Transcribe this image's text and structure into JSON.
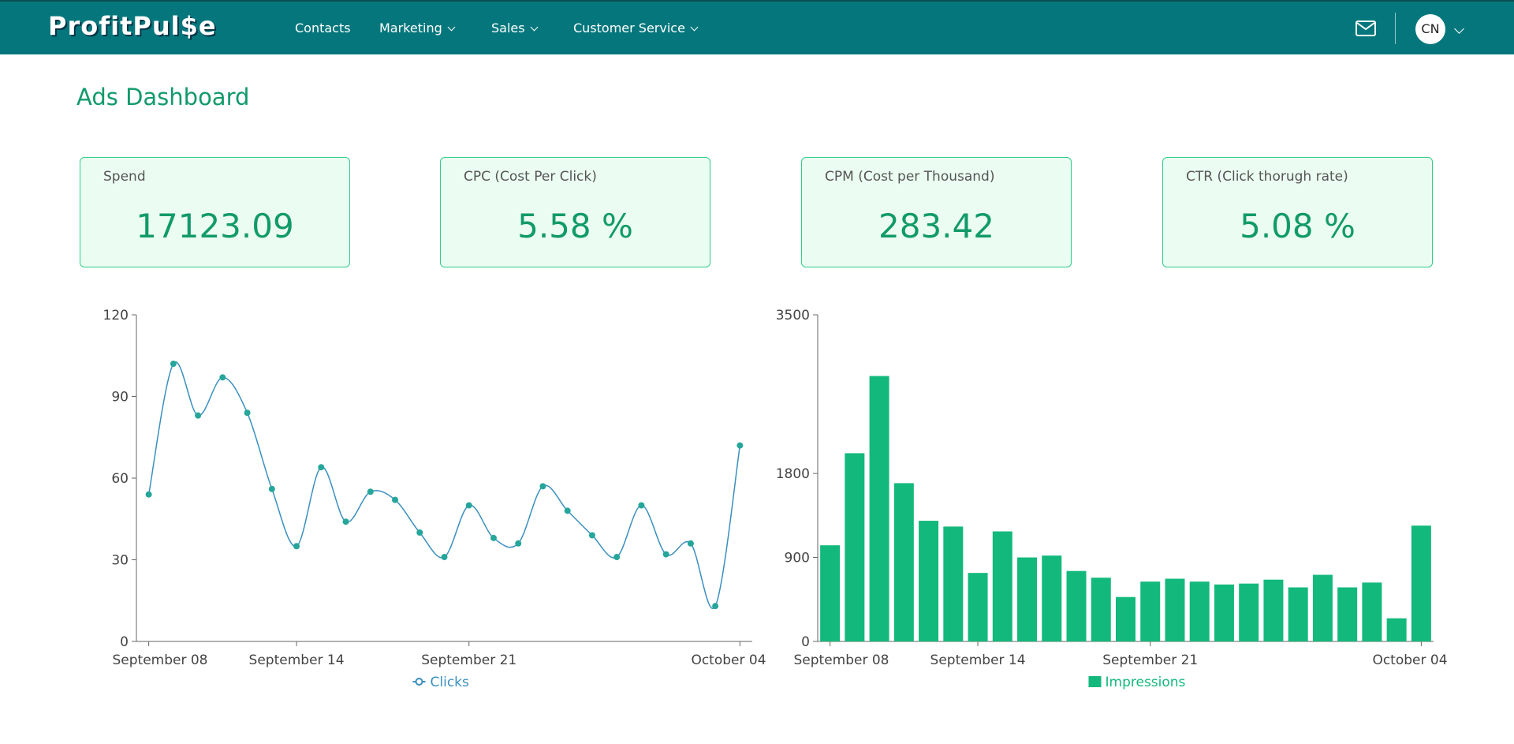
{
  "nav": {
    "logo": "ProfitPul$e",
    "items": [
      "Contacts",
      "Marketing",
      "Sales",
      "Customer Service"
    ],
    "avatar": "CN"
  },
  "title": "Ads Dashboard",
  "cards": [
    {
      "label": "Spend",
      "value": "17123.09"
    },
    {
      "label": "CPC (Cost Per Click)",
      "value": "5.58 %"
    },
    {
      "label": "CPM (Cost per Thousand)",
      "value": "283.42"
    },
    {
      "label": "CTR (Click thorugh rate)",
      "value": "5.08 %"
    }
  ],
  "chart_data": [
    {
      "type": "line",
      "categories": [
        "September 08",
        null,
        null,
        null,
        null,
        null,
        "September 14",
        null,
        null,
        null,
        null,
        null,
        null,
        "September 21",
        null,
        null,
        null,
        null,
        null,
        null,
        null,
        null,
        null,
        null,
        "October 04"
      ],
      "series": [
        {
          "name": "Clicks",
          "color": "#3a8fbf",
          "marker_color": "#26a69a",
          "values": [
            54,
            102,
            83,
            97,
            84,
            56,
            35,
            64,
            44,
            55,
            52,
            40,
            31,
            50,
            38,
            36,
            57,
            48,
            39,
            31,
            50,
            32,
            36,
            13,
            72
          ]
        }
      ],
      "ylim": [
        0,
        120
      ],
      "yticks": [
        0,
        30,
        60,
        90,
        120
      ],
      "legend": "bottom"
    },
    {
      "type": "bar",
      "categories": [
        "September 08",
        null,
        null,
        null,
        null,
        null,
        "September 14",
        null,
        null,
        null,
        null,
        null,
        null,
        "September 21",
        null,
        null,
        null,
        null,
        null,
        null,
        null,
        null,
        null,
        null,
        "October 04"
      ],
      "series": [
        {
          "name": "Impressions",
          "color": "#13b97c",
          "values": [
            1030,
            2017,
            2844,
            1696,
            1293,
            1231,
            734,
            1179,
            900,
            920,
            755,
            683,
            476,
            641,
            672,
            641,
            610,
            620,
            662,
            579,
            714,
            579,
            631,
            248,
            1241
          ]
        }
      ],
      "ylim": [
        0,
        3500
      ],
      "yticks": [
        0,
        900,
        1800,
        3500
      ],
      "legend": "bottom"
    }
  ]
}
